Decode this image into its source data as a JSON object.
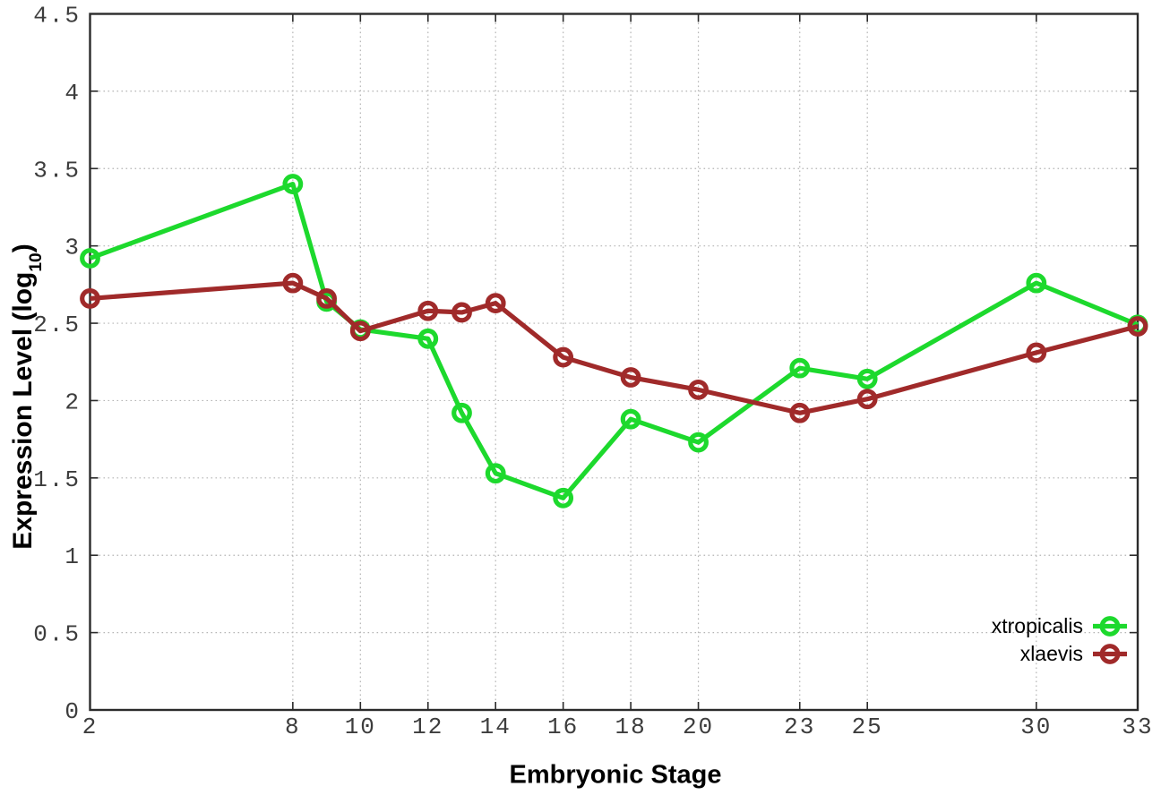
{
  "chart_data": {
    "type": "line",
    "title": "",
    "xlabel": "Embryonic Stage",
    "ylabel": "Expression Level (log10)",
    "ylabel_parts": {
      "pre": "Expression Level (log",
      "sub": "10",
      "post": ")"
    },
    "xlim": [
      2,
      33
    ],
    "ylim": [
      0,
      4.5
    ],
    "x": [
      2,
      8,
      9,
      10,
      12,
      13,
      14,
      16,
      18,
      20,
      23,
      25,
      30,
      33
    ],
    "xtick_labels": [
      "2",
      "8",
      "10",
      "12",
      "14",
      "16",
      "18",
      "20",
      "23",
      "25",
      "30",
      "33"
    ],
    "xtick_values": [
      2,
      8,
      10,
      12,
      14,
      16,
      18,
      20,
      23,
      25,
      30,
      33
    ],
    "ytick_labels": [
      "0",
      "0.5",
      "1",
      "1.5",
      "2",
      "2.5",
      "3",
      "3.5",
      "4",
      "4.5"
    ],
    "ytick_values": [
      0,
      0.5,
      1,
      1.5,
      2,
      2.5,
      3,
      3.5,
      4,
      4.5
    ],
    "grid": true,
    "legend_position": "bottom-right-inside",
    "marker": "open-circle",
    "series": [
      {
        "name": "xtropicalis",
        "color": "#1dd92d",
        "values": [
          2.92,
          3.4,
          2.64,
          2.46,
          2.4,
          1.92,
          1.53,
          1.37,
          1.88,
          1.73,
          2.21,
          2.14,
          2.76,
          2.49
        ]
      },
      {
        "name": "xlaevis",
        "color": "#a02a2a",
        "values": [
          2.66,
          2.76,
          2.66,
          2.45,
          2.58,
          2.57,
          2.63,
          2.28,
          2.15,
          2.07,
          1.92,
          2.01,
          2.31,
          2.48
        ]
      }
    ],
    "colors": {
      "axis": "#2b2b2b",
      "grid": "#b4b4b4",
      "tick_label": "#3d3d3d",
      "text": "#000000",
      "background": "#ffffff"
    }
  }
}
